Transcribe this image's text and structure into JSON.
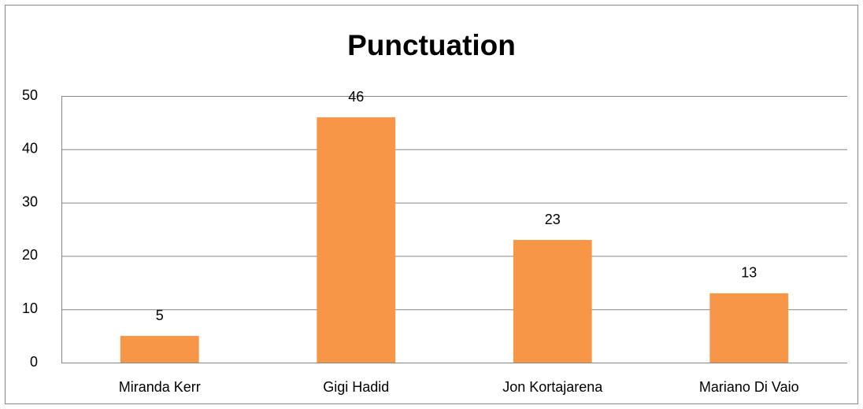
{
  "chart_data": {
    "type": "bar",
    "title": "Punctuation",
    "categories": [
      "Miranda Kerr",
      "Gigi Hadid",
      "Jon Kortajarena",
      "Mariano Di Vaio"
    ],
    "values": [
      5,
      46,
      23,
      13
    ],
    "color": "#f79646",
    "ylim": [
      0,
      50
    ],
    "yticks": [
      0,
      10,
      20,
      30,
      40,
      50
    ],
    "grid": true,
    "data_labels": true
  }
}
